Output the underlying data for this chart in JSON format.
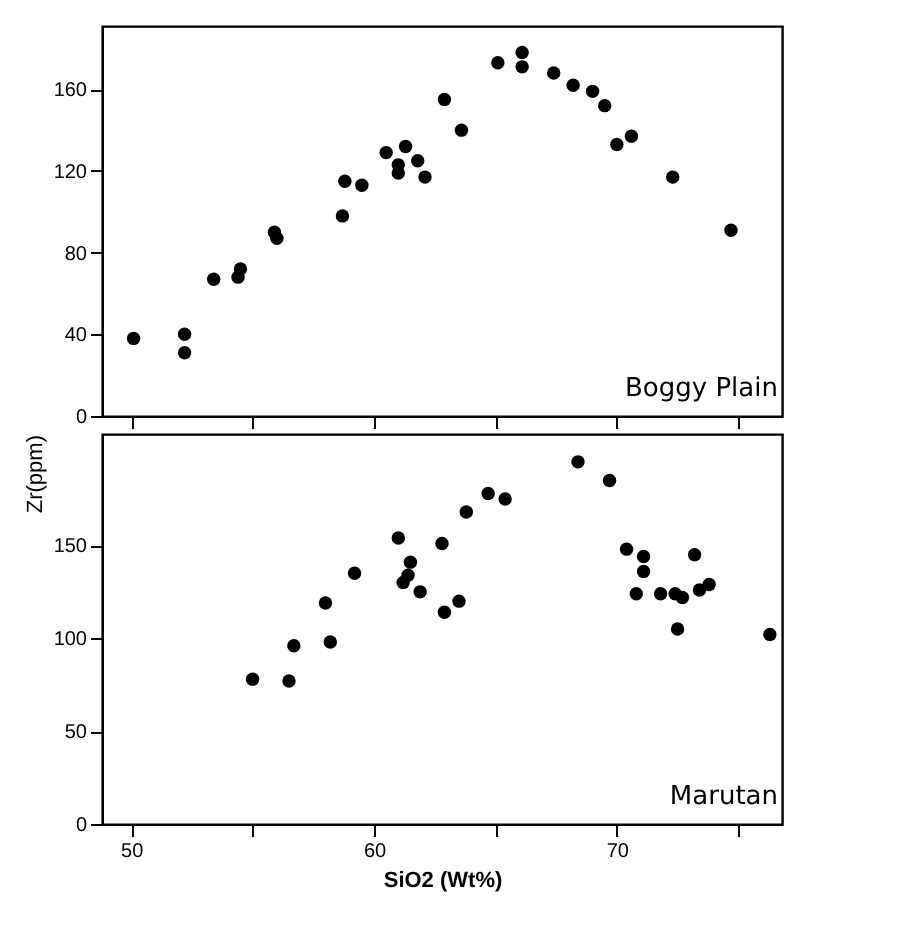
{
  "chart_data": [
    {
      "type": "scatter",
      "x": [
        50.1,
        52.2,
        52.2,
        53.4,
        54.4,
        54.5,
        55.9,
        56.0,
        58.7,
        58.8,
        59.5,
        60.5,
        61.3,
        61.0,
        61.0,
        61.8,
        62.1,
        62.9,
        63.6,
        65.1,
        66.1,
        66.1,
        67.4,
        68.2,
        69.0,
        69.5,
        70.0,
        70.6,
        72.3,
        74.7
      ],
      "series": [
        {
          "color": "#000000",
          "values": [
            38,
            40,
            31,
            67,
            68,
            72,
            90,
            87,
            98,
            115,
            113,
            129,
            132,
            123,
            119,
            125,
            117,
            155,
            140,
            173,
            178,
            171,
            168,
            162,
            159,
            152,
            133,
            137,
            117,
            91
          ]
        }
      ],
      "xlim": [
        48.8,
        76.8
      ],
      "xticks": [
        50,
        {
          "value": 55,
          "label": null
        },
        60,
        {
          "value": 65,
          "label": null
        },
        70,
        {
          "value": 75,
          "label": null
        }
      ],
      "ylim": [
        0,
        191
      ],
      "yticks": [
        0,
        40,
        80,
        120,
        160
      ],
      "tick_labels": "y",
      "marker": "circle",
      "grid": false,
      "annotations": [
        "Boggy Plain"
      ]
    },
    {
      "type": "scatter",
      "x": [
        55.0,
        56.5,
        56.7,
        58.0,
        58.2,
        59.2,
        61.0,
        61.2,
        61.4,
        61.5,
        61.9,
        62.8,
        62.9,
        63.5,
        63.8,
        64.7,
        65.4,
        68.4,
        69.7,
        70.4,
        70.8,
        71.1,
        71.1,
        71.8,
        72.4,
        72.7,
        72.5,
        73.2,
        73.4,
        73.8,
        76.3
      ],
      "series": [
        {
          "color": "#000000",
          "values": [
            78,
            77,
            96,
            119,
            98,
            135,
            154,
            130,
            134,
            141,
            125,
            151,
            114,
            120,
            168,
            178,
            175,
            195,
            185,
            148,
            124,
            144,
            136,
            124,
            124,
            122,
            105,
            145,
            126,
            129,
            102
          ]
        }
      ],
      "xlim": [
        48.8,
        76.8
      ],
      "xticks": [
        50,
        {
          "value": 55,
          "label": null
        },
        60,
        {
          "value": 65,
          "label": null
        },
        70,
        {
          "value": 75,
          "label": null
        }
      ],
      "ylim": [
        0,
        210
      ],
      "yticks": [
        0,
        50,
        100,
        150
      ],
      "xlabel": "SiO2 (Wt%)",
      "ylabel": "Zr(ppm)",
      "marker": "circle",
      "grid": false,
      "annotations": [
        "Marutan"
      ]
    }
  ]
}
